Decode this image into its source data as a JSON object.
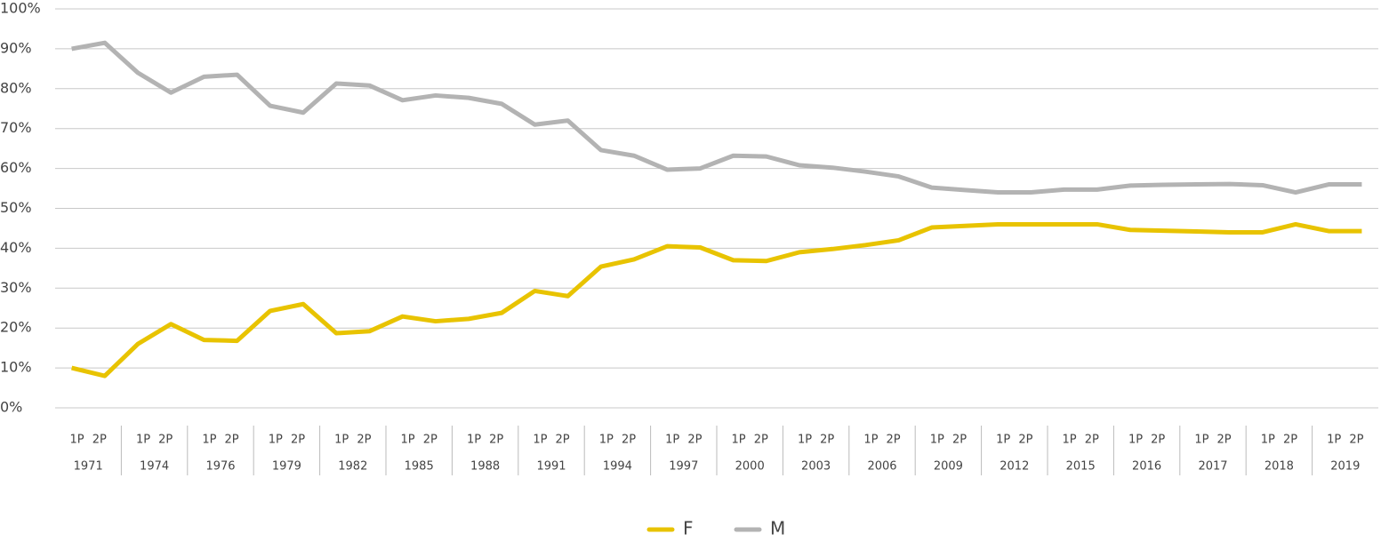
{
  "chart_data": {
    "type": "line",
    "groups": [
      "1971",
      "1974",
      "1976",
      "1979",
      "1982",
      "1985",
      "1988",
      "1991",
      "1994",
      "1997",
      "2000",
      "2003",
      "2006",
      "2009",
      "2012",
      "2015",
      "2016",
      "2017",
      "2018",
      "2019"
    ],
    "categories": [
      "1P",
      "2P",
      "1P",
      "2P",
      "1P",
      "2P",
      "1P",
      "2P",
      "1P",
      "2P",
      "1P",
      "2P",
      "1P",
      "2P",
      "1P",
      "2P",
      "1P",
      "2P",
      "1P",
      "2P",
      "1P",
      "2P",
      "1P",
      "2P",
      "1P",
      "2P",
      "1P",
      "2P",
      "1P",
      "2P",
      "1P",
      "2P",
      "1P",
      "2P",
      "1P",
      "2P",
      "1P",
      "2P",
      "1P",
      "2P"
    ],
    "series": [
      {
        "name": "F",
        "color": "#e8c300",
        "values": [
          10,
          8,
          16,
          21,
          17,
          16.8,
          24.3,
          26,
          18.7,
          19.2,
          22.9,
          21.7,
          22.3,
          23.8,
          29.3,
          28,
          35.4,
          37.2,
          40.5,
          40.2,
          37,
          36.8,
          39,
          39.8,
          40.8,
          42,
          45.2,
          45.6,
          46,
          46,
          46,
          46,
          44.6,
          44.4,
          44.2,
          44,
          44,
          46,
          44.3,
          44.3
        ]
      },
      {
        "name": "M",
        "color": "#b3b3b3",
        "values": [
          90,
          91.5,
          84,
          79,
          83,
          83.5,
          75.7,
          74,
          81.3,
          80.8,
          77.1,
          78.3,
          77.7,
          76.2,
          71,
          72,
          64.6,
          63.2,
          59.7,
          60,
          63.2,
          63,
          60.8,
          60.2,
          59.2,
          58,
          55.2,
          54.6,
          54,
          54,
          54.7,
          54.7,
          55.7,
          55.9,
          56,
          56.1,
          55.8,
          54,
          56,
          56
        ]
      }
    ],
    "ylim": [
      0,
      100
    ],
    "yticks": [
      {
        "value": 0,
        "label": "0%"
      },
      {
        "value": 10,
        "label": "10%"
      },
      {
        "value": 20,
        "label": "20%"
      },
      {
        "value": 30,
        "label": "30%"
      },
      {
        "value": 40,
        "label": "40%"
      },
      {
        "value": 50,
        "label": "50%"
      },
      {
        "value": 60,
        "label": "60%"
      },
      {
        "value": 70,
        "label": "70%"
      },
      {
        "value": 80,
        "label": "80%"
      },
      {
        "value": 90,
        "label": "90%"
      },
      {
        "value": 100,
        "label": "100%"
      }
    ],
    "grid": true,
    "legend": "bottom"
  }
}
